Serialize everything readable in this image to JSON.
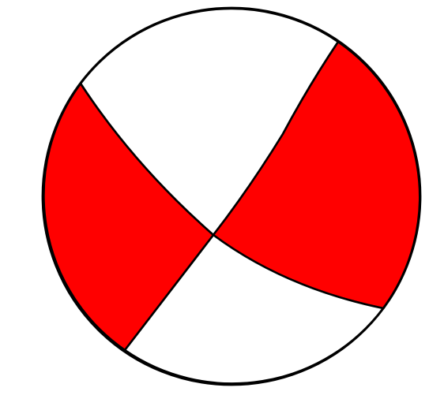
{
  "diagram": {
    "type": "focal-mechanism-beachball",
    "colors": {
      "compressional_fill": "#ff0000",
      "dilatational_fill": "#ffffff",
      "outline": "#000000",
      "background": "#ffffff"
    },
    "quadrants": [
      {
        "id": "upper-white",
        "state": "dilatational"
      },
      {
        "id": "right-red",
        "state": "compressional"
      },
      {
        "id": "lower-white",
        "state": "dilatational"
      },
      {
        "id": "left-red",
        "state": "compressional"
      }
    ]
  }
}
